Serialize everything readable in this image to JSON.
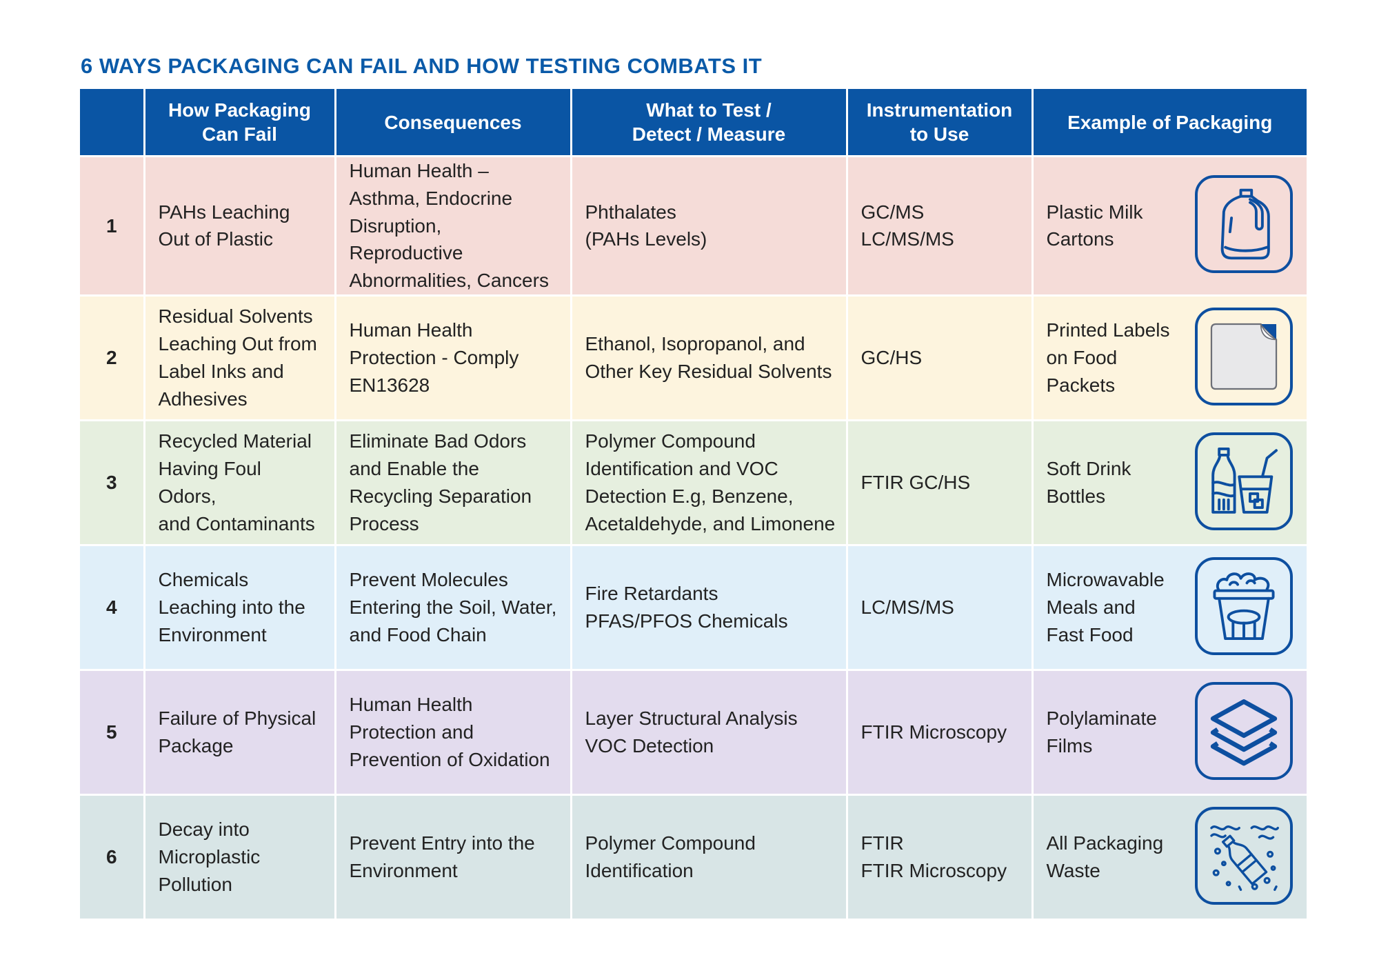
{
  "title": "6 WAYS PACKAGING CAN FAIL AND HOW TESTING COMBATS IT",
  "headers": {
    "num": "",
    "fail": [
      "How Packaging",
      "Can Fail"
    ],
    "consequences": "Consequences",
    "test": [
      "What to Test /",
      "Detect / Measure"
    ],
    "instrumentation": [
      "Instrumentation",
      "to Use"
    ],
    "example": "Example of Packaging"
  },
  "rows": [
    {
      "num": "1",
      "fail": [
        "PAHs Leaching",
        "Out of Plastic"
      ],
      "consequences": [
        "Human Health –",
        "Asthma, Endocrine",
        "Disruption, Reproductive",
        "Abnormalities, Cancers"
      ],
      "test": [
        "Phthalates",
        "(PAHs Levels)"
      ],
      "instrumentation": [
        "GC/MS",
        "LC/MS/MS"
      ],
      "example": [
        "Plastic Milk",
        "Cartons"
      ],
      "icon": "milk-jug-icon"
    },
    {
      "num": "2",
      "fail": [
        "Residual Solvents",
        "Leaching Out from",
        "Label Inks and",
        "Adhesives"
      ],
      "consequences": [
        "Human Health",
        "Protection - Comply",
        "EN13628"
      ],
      "test": [
        "Ethanol, Isopropanol, and",
        "Other Key Residual Solvents"
      ],
      "instrumentation": [
        "GC/HS"
      ],
      "example": [
        "Printed Labels",
        "on Food",
        "Packets"
      ],
      "icon": "label-sticker-icon"
    },
    {
      "num": "3",
      "fail": [
        "Recycled Material",
        "Having Foul Odors,",
        "and Contaminants"
      ],
      "consequences": [
        "Eliminate Bad Odors",
        "and Enable the",
        "Recycling Separation",
        "Process"
      ],
      "test": [
        "Polymer Compound",
        "Identification and VOC",
        "Detection E.g, Benzene,",
        "Acetaldehyde, and Limonene"
      ],
      "instrumentation": [
        "FTIR GC/HS"
      ],
      "example": [
        "Soft Drink",
        "Bottles"
      ],
      "icon": "soda-bottle-glass-icon"
    },
    {
      "num": "4",
      "fail": [
        "Chemicals",
        "Leaching into the",
        "Environment"
      ],
      "consequences": [
        "Prevent Molecules",
        "Entering the Soil, Water,",
        "and Food Chain"
      ],
      "test": [
        "Fire Retardants",
        "PFAS/PFOS Chemicals"
      ],
      "instrumentation": [
        "LC/MS/MS"
      ],
      "example": [
        "Microwavable",
        "Meals and",
        "Fast Food"
      ],
      "icon": "popcorn-bucket-icon"
    },
    {
      "num": "5",
      "fail": [
        "Failure of Physical",
        "Package"
      ],
      "consequences": [
        "Human Health",
        "Protection and",
        "Prevention of Oxidation"
      ],
      "test": [
        "Layer Structural Analysis",
        "VOC Detection"
      ],
      "instrumentation": [
        "FTIR Microscopy"
      ],
      "example": [
        "Polylaminate",
        "Films"
      ],
      "icon": "layers-icon"
    },
    {
      "num": "6",
      "fail": [
        "Decay into",
        "Microplastic",
        "Pollution"
      ],
      "consequences": [
        "Prevent Entry into the",
        "Environment"
      ],
      "test": [
        "Polymer Compound",
        "Identification"
      ],
      "instrumentation": [
        "FTIR",
        "FTIR Microscopy"
      ],
      "example": [
        "All Packaging",
        "Waste"
      ],
      "icon": "microplastic-bottle-icon"
    }
  ],
  "colors": {
    "title": "#0a5aa8",
    "header_bg": "#0a55a4",
    "icon_stroke": "#0d4fa0",
    "row_backgrounds": [
      "#f5dcd8",
      "#fdf4de",
      "#e6efdf",
      "#e0eff9",
      "#e3dcee",
      "#d8e5e6"
    ]
  }
}
